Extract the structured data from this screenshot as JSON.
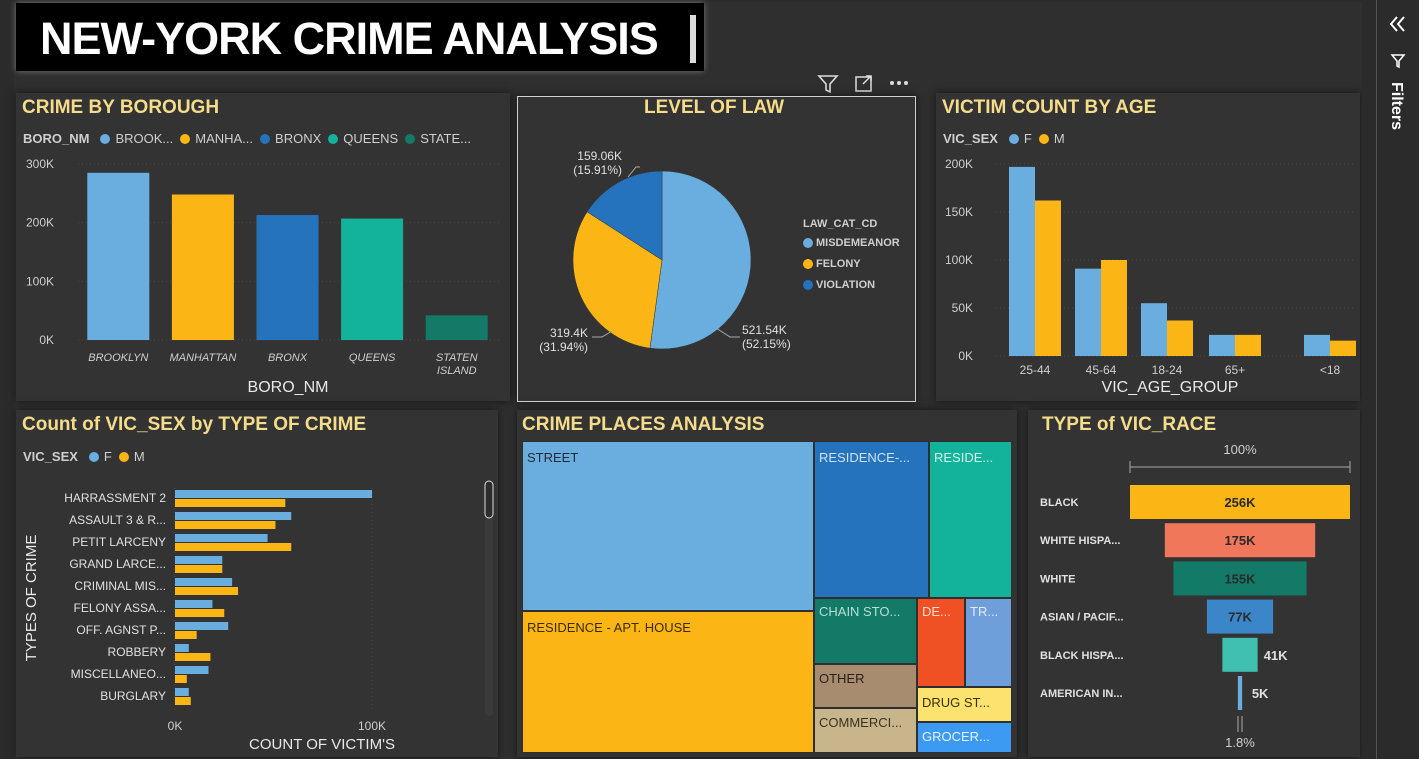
{
  "header": {
    "title": "NEW-YORK CRIME ANALYSIS"
  },
  "toolbar": {
    "filter_icon": "filter-icon",
    "focus_icon": "focus-mode-icon",
    "more_icon": "more-options-icon"
  },
  "filters_pane": {
    "label": "Filters",
    "collapse_icon": "double-chevron-left-icon"
  },
  "colors": {
    "blue_light": "#6aaddf",
    "yellow": "#fbb616",
    "blue_dark": "#2573bd",
    "teal": "#12b39a",
    "dark_teal": "#127a67",
    "orange_red": "#ef5124",
    "salmon": "#f1775a",
    "tan": "#a78c70",
    "beige": "#c9b58b",
    "light_yellow": "#fce26e",
    "sky": "#3d9af2",
    "periwinkle": "#6f9fdb",
    "mint": "#3fc0b0",
    "title": "#f5dc8a"
  },
  "borough": {
    "title": "CRIME BY BOROUGH",
    "legend_title": "BORO_NM",
    "legend": [
      "BROOK...",
      "MANHA...",
      "BRONX",
      "QUEENS",
      "STATE..."
    ],
    "x_axis_label": "BORO_NM",
    "y_ticks": [
      "300K",
      "200K",
      "100K",
      "0K"
    ],
    "x_ticks": [
      "BROOKLYN",
      "MANHATTAN",
      "BRONX",
      "QUEENS",
      "STATEN ISLAND"
    ]
  },
  "law": {
    "title": "LEVEL OF LAW",
    "legend_title": "LAW_CAT_CD",
    "legend": [
      "MISDEMEANOR",
      "FELONY",
      "VIOLATION"
    ],
    "labels": [
      {
        "value": "521.54K",
        "pct": "(52.15%)"
      },
      {
        "value": "319.4K",
        "pct": "(31.94%)"
      },
      {
        "value": "159.06K",
        "pct": "(15.91%)"
      }
    ]
  },
  "victim_age": {
    "title": "VICTIM COUNT BY AGE",
    "legend_title": "VIC_SEX",
    "legend": [
      "F",
      "M"
    ],
    "x_axis_label": "VIC_AGE_GROUP",
    "y_ticks": [
      "200K",
      "150K",
      "100K",
      "50K",
      "0K"
    ],
    "x_ticks": [
      "25-44",
      "45-64",
      "18-24",
      "65+",
      "<18"
    ]
  },
  "crime_type": {
    "title": "Count of VIC_SEX by TYPE OF CRIME",
    "legend_title": "VIC_SEX",
    "legend": [
      "F",
      "M"
    ],
    "y_axis_label": "TYPES OF CRIME",
    "x_axis_label": "COUNT OF VICTIM'S",
    "x_ticks": [
      "0K",
      "100K"
    ],
    "categories": [
      "HARRASSMENT 2",
      "ASSAULT 3 & R...",
      "PETIT LARCENY",
      "GRAND LARCE...",
      "CRIMINAL MIS...",
      "FELONY ASSA...",
      "OFF. AGNST P...",
      "ROBBERY",
      "MISCELLANEO...",
      "BURGLARY"
    ]
  },
  "places": {
    "title": "CRIME PLACES ANALYSIS",
    "tiles": [
      "STREET",
      "RESIDENCE - APT. HOUSE",
      "RESIDENCE-...",
      "RESIDE...",
      "CHAIN STO...",
      "DE...",
      "TR...",
      "OTHER",
      "DRUG ST...",
      "COMMERCI...",
      "GROCER..."
    ]
  },
  "race": {
    "title": "TYPE of VIC_RACE",
    "top_label": "100%",
    "bottom_label": "1.8%",
    "categories": [
      "BLACK",
      "WHITE HISPA...",
      "WHITE",
      "ASIAN / PACIF...",
      "BLACK HISPA...",
      "AMERICAN IN..."
    ],
    "value_labels": [
      "256K",
      "175K",
      "155K",
      "77K",
      "41K",
      "5K"
    ]
  },
  "chart_data": [
    {
      "type": "bar",
      "title": "CRIME BY BOROUGH",
      "xlabel": "BORO_NM",
      "ylabel": "",
      "categories": [
        "BROOKLYN",
        "MANHATTAN",
        "BRONX",
        "QUEENS",
        "STATEN ISLAND"
      ],
      "values": [
        285000,
        248000,
        213000,
        207000,
        42000
      ],
      "ylim": [
        0,
        300000
      ]
    },
    {
      "type": "pie",
      "title": "LEVEL OF LAW",
      "categories": [
        "MISDEMEANOR",
        "FELONY",
        "VIOLATION"
      ],
      "values": [
        521540,
        319400,
        159060
      ]
    },
    {
      "type": "bar",
      "title": "VICTIM COUNT BY AGE",
      "xlabel": "VIC_AGE_GROUP",
      "ylabel": "",
      "categories": [
        "25-44",
        "45-64",
        "18-24",
        "65+",
        "<18"
      ],
      "series": [
        {
          "name": "F",
          "values": [
            197000,
            91000,
            55000,
            22000,
            22000
          ]
        },
        {
          "name": "M",
          "values": [
            162000,
            100000,
            37000,
            22000,
            16000
          ]
        }
      ],
      "ylim": [
        0,
        210000
      ]
    },
    {
      "type": "bar",
      "title": "Count of VIC_SEX by TYPE OF CRIME",
      "xlabel": "COUNT OF VICTIM'S",
      "ylabel": "TYPES OF CRIME",
      "categories": [
        "HARRASSMENT 2",
        "ASSAULT 3 & R...",
        "PETIT LARCENY",
        "GRAND LARCE...",
        "CRIMINAL MIS...",
        "FELONY ASSA...",
        "OFF. AGNST P...",
        "ROBBERY",
        "MISCELLANEO...",
        "BURGLARY"
      ],
      "series": [
        {
          "name": "F",
          "values": [
            100000,
            59000,
            47000,
            24000,
            29000,
            19000,
            27000,
            7000,
            17000,
            7000
          ]
        },
        {
          "name": "M",
          "values": [
            56000,
            51000,
            59000,
            24000,
            32000,
            25000,
            11000,
            18000,
            6000,
            8000
          ]
        }
      ],
      "xlim": [
        0,
        110000
      ]
    },
    {
      "type": "treemap",
      "title": "CRIME PLACES ANALYSIS",
      "categories": [
        "STREET",
        "RESIDENCE - APT. HOUSE",
        "RESIDENCE-...",
        "RESIDE...",
        "CHAIN STO...",
        "DE...",
        "TR...",
        "OTHER",
        "DRUG ST...",
        "COMMERCI...",
        "GROCER..."
      ]
    },
    {
      "type": "funnel",
      "title": "TYPE of VIC_RACE",
      "categories": [
        "BLACK",
        "WHITE HISPA...",
        "WHITE",
        "ASIAN / PACIF...",
        "BLACK HISPA...",
        "AMERICAN IN..."
      ],
      "values": [
        256000,
        175000,
        155000,
        77000,
        41000,
        5000
      ]
    }
  ]
}
